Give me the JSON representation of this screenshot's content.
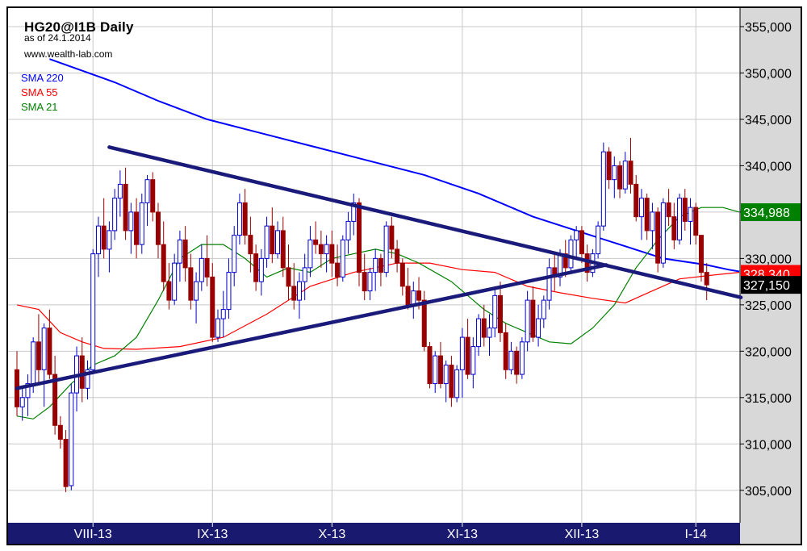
{
  "header": {
    "title": "HG20@I1B Daily",
    "as_of": "as of 24.1.2014",
    "source": "www.wealth-lab.com"
  },
  "legend": [
    {
      "label": "SMA 220",
      "color": "#0000ff"
    },
    {
      "label": "SMA 55",
      "color": "#ff0000"
    },
    {
      "label": "SMA 21",
      "color": "#008000"
    }
  ],
  "colors": {
    "up_candle": "#0000cc",
    "down_candle": "#990000",
    "trendline": "#1a1a7a",
    "axis_bar": "#191970",
    "right_axis_bg": "#d8d8d8",
    "grid": "#c8c8c8"
  },
  "chart_data": {
    "type": "candlestick",
    "title": "HG20@I1B Daily",
    "ylim": [
      301500,
      357000
    ],
    "y_ticks": [
      305000,
      310000,
      315000,
      320000,
      325000,
      330000,
      335000,
      340000,
      345000,
      350000,
      355000
    ],
    "y_tick_labels": [
      "305,000",
      "310,000",
      "315,000",
      "320,000",
      "325,000",
      "330,000",
      "335,000",
      "340,000",
      "345,000",
      "350,000",
      "355,000"
    ],
    "x_labels": [
      {
        "label": "VIII-13",
        "bar": 14
      },
      {
        "label": "IX-13",
        "bar": 36
      },
      {
        "label": "X-13",
        "bar": 58
      },
      {
        "label": "XI-13",
        "bar": 82
      },
      {
        "label": "XII-13",
        "bar": 104
      },
      {
        "label": "I-14",
        "bar": 125
      }
    ],
    "last_value_tags": [
      {
        "label": "334,988",
        "value": 334988,
        "bg": "#008000",
        "fg": "#ffffff"
      },
      {
        "label": "328,340",
        "value": 328340,
        "bg": "#ff0000",
        "fg": "#ffffff"
      },
      {
        "label": "327,150",
        "value": 327150,
        "bg": "#000000",
        "fg": "#ffffff"
      }
    ],
    "candles": [
      [
        318000,
        320000,
        313000,
        314000
      ],
      [
        314000,
        316000,
        312500,
        315000
      ],
      [
        315000,
        317500,
        313000,
        316500
      ],
      [
        316500,
        321500,
        315500,
        321000
      ],
      [
        321000,
        324000,
        316500,
        318000
      ],
      [
        318000,
        323000,
        314000,
        322500
      ],
      [
        322500,
        324500,
        317000,
        317500
      ],
      [
        317500,
        319500,
        311000,
        312000
      ],
      [
        312000,
        313000,
        309500,
        310500
      ],
      [
        310500,
        311500,
        304800,
        305400
      ],
      [
        305500,
        316500,
        305000,
        315500
      ],
      [
        315500,
        320500,
        313500,
        319500
      ],
      [
        319500,
        321500,
        314500,
        316000
      ],
      [
        316000,
        319000,
        314800,
        318000
      ],
      [
        318000,
        331000,
        317500,
        330500
      ],
      [
        330500,
        334500,
        328000,
        333500
      ],
      [
        333500,
        336500,
        330000,
        331000
      ],
      [
        331000,
        334000,
        328500,
        333000
      ],
      [
        333000,
        337500,
        332000,
        336500
      ],
      [
        336500,
        339500,
        334500,
        338000
      ],
      [
        338000,
        339800,
        332000,
        333000
      ],
      [
        333000,
        336000,
        330500,
        335000
      ],
      [
        335000,
        336500,
        330000,
        331500
      ],
      [
        331500,
        337000,
        330500,
        336000
      ],
      [
        336000,
        339000,
        333500,
        338500
      ],
      [
        338500,
        339300,
        334000,
        335000
      ],
      [
        335000,
        336000,
        330000,
        331500
      ],
      [
        331500,
        334000,
        326500,
        327500
      ],
      [
        327500,
        329500,
        324500,
        325500
      ],
      [
        325500,
        330500,
        325000,
        329500
      ],
      [
        329500,
        333000,
        327500,
        332000
      ],
      [
        332000,
        333500,
        327500,
        329000
      ],
      [
        329000,
        330500,
        324500,
        325500
      ],
      [
        325500,
        328500,
        323000,
        327500
      ],
      [
        327500,
        331500,
        326500,
        330000
      ],
      [
        330000,
        332500,
        327000,
        328000
      ],
      [
        328000,
        329500,
        321000,
        321500
      ],
      [
        321500,
        324500,
        321000,
        323500
      ],
      [
        323500,
        326500,
        321500,
        324500
      ],
      [
        324500,
        330000,
        323500,
        328500
      ],
      [
        328500,
        333500,
        327000,
        332500
      ],
      [
        332500,
        337000,
        331500,
        336000
      ],
      [
        336000,
        337500,
        331500,
        332500
      ],
      [
        332500,
        334500,
        328500,
        330500
      ],
      [
        330500,
        331500,
        326500,
        327500
      ],
      [
        327500,
        331000,
        326000,
        330000
      ],
      [
        330000,
        334500,
        329000,
        333500
      ],
      [
        333500,
        335500,
        329500,
        330500
      ],
      [
        330500,
        334000,
        330000,
        333000
      ],
      [
        333000,
        334500,
        328000,
        329000
      ],
      [
        329000,
        331500,
        325500,
        327000
      ],
      [
        327000,
        329500,
        324500,
        325500
      ],
      [
        325500,
        328500,
        323500,
        327500
      ],
      [
        327500,
        330500,
        325500,
        329000
      ],
      [
        329000,
        333500,
        328000,
        332000
      ],
      [
        332000,
        334000,
        330500,
        331500
      ],
      [
        331500,
        333000,
        329000,
        330500
      ],
      [
        330500,
        332500,
        328500,
        331500
      ],
      [
        331500,
        333000,
        328000,
        329500
      ],
      [
        329500,
        331500,
        327000,
        328000
      ],
      [
        328000,
        332500,
        327500,
        332000
      ],
      [
        332000,
        335000,
        330500,
        334000
      ],
      [
        334000,
        337000,
        332500,
        336000
      ],
      [
        336000,
        336500,
        327000,
        328500
      ],
      [
        328500,
        330500,
        325500,
        326500
      ],
      [
        326500,
        329000,
        325500,
        328500
      ],
      [
        328500,
        331000,
        326500,
        330000
      ],
      [
        330000,
        330500,
        327000,
        328500
      ],
      [
        328500,
        334000,
        328000,
        333500
      ],
      [
        333500,
        334500,
        330000,
        331000
      ],
      [
        331000,
        332000,
        328500,
        329500
      ],
      [
        329500,
        330000,
        326000,
        327000
      ],
      [
        327000,
        329000,
        324500,
        325000
      ],
      [
        325000,
        327500,
        323500,
        326500
      ],
      [
        326500,
        328000,
        324500,
        325500
      ],
      [
        325500,
        326500,
        320000,
        320500
      ],
      [
        320500,
        321000,
        316000,
        316500
      ],
      [
        316500,
        320000,
        315500,
        319500
      ],
      [
        319500,
        321000,
        316000,
        316500
      ],
      [
        316500,
        319000,
        314500,
        318500
      ],
      [
        318500,
        319500,
        314000,
        315000
      ],
      [
        315000,
        318500,
        314500,
        318000
      ],
      [
        318000,
        322500,
        315000,
        321500
      ],
      [
        321500,
        323500,
        317000,
        317500
      ],
      [
        317500,
        321500,
        316000,
        320500
      ],
      [
        320500,
        324000,
        319500,
        323500
      ],
      [
        323500,
        325000,
        320500,
        321500
      ],
      [
        321500,
        324000,
        319500,
        322500
      ],
      [
        322500,
        327000,
        321500,
        326000
      ],
      [
        326000,
        327500,
        321000,
        322000
      ],
      [
        322000,
        323000,
        317000,
        318000
      ],
      [
        318000,
        321000,
        317500,
        320000
      ],
      [
        320000,
        320500,
        316500,
        317500
      ],
      [
        317500,
        321500,
        317000,
        321000
      ],
      [
        321000,
        326500,
        320000,
        325500
      ],
      [
        325500,
        327000,
        321000,
        321500
      ],
      [
        321500,
        325000,
        320500,
        323500
      ],
      [
        323500,
        326000,
        322500,
        325500
      ],
      [
        325500,
        330000,
        324500,
        329000
      ],
      [
        329000,
        330500,
        326500,
        328000
      ],
      [
        328000,
        331000,
        327000,
        330500
      ],
      [
        330500,
        332000,
        328000,
        329000
      ],
      [
        329000,
        332500,
        328500,
        332000
      ],
      [
        332000,
        333500,
        330000,
        333000
      ],
      [
        333000,
        333500,
        329500,
        330500
      ],
      [
        330500,
        331500,
        327500,
        328500
      ],
      [
        328500,
        331000,
        328000,
        330500
      ],
      [
        330500,
        334000,
        330000,
        333500
      ],
      [
        333500,
        342500,
        333000,
        341500
      ],
      [
        341500,
        342000,
        337500,
        338500
      ],
      [
        338500,
        341000,
        336500,
        340000
      ],
      [
        340000,
        340500,
        336500,
        337500
      ],
      [
        337500,
        341500,
        337000,
        340500
      ],
      [
        340500,
        343000,
        337000,
        338000
      ],
      [
        338000,
        339000,
        334000,
        334500
      ],
      [
        334500,
        337500,
        332000,
        336500
      ],
      [
        336500,
        337000,
        332000,
        333000
      ],
      [
        333000,
        336000,
        331000,
        335000
      ],
      [
        335000,
        335500,
        328500,
        329500
      ],
      [
        329500,
        336500,
        329000,
        336000
      ],
      [
        336000,
        337500,
        333500,
        334500
      ],
      [
        334500,
        336000,
        331000,
        332000
      ],
      [
        332000,
        337000,
        331500,
        336500
      ],
      [
        336500,
        337500,
        333000,
        334000
      ],
      [
        334000,
        336500,
        331500,
        335500
      ],
      [
        335500,
        336000,
        331500,
        332500
      ],
      [
        332500,
        332500,
        327500,
        328500
      ],
      [
        328500,
        329500,
        325500,
        327150
      ]
    ],
    "sma220": [
      [
        6,
        351500
      ],
      [
        18,
        349000
      ],
      [
        26,
        347000
      ],
      [
        35,
        345000
      ],
      [
        45,
        343500
      ],
      [
        55,
        342000
      ],
      [
        65,
        340500
      ],
      [
        75,
        339000
      ],
      [
        85,
        337000
      ],
      [
        95,
        334500
      ],
      [
        103,
        333000
      ],
      [
        111,
        331500
      ],
      [
        119,
        330000
      ],
      [
        127,
        329300
      ],
      [
        131,
        328800
      ],
      [
        133,
        328600
      ]
    ],
    "sma55": [
      [
        0,
        325000
      ],
      [
        4,
        324500
      ],
      [
        8,
        322000
      ],
      [
        12,
        321000
      ],
      [
        16,
        320300
      ],
      [
        22,
        320200
      ],
      [
        30,
        320500
      ],
      [
        38,
        321500
      ],
      [
        46,
        324000
      ],
      [
        54,
        327000
      ],
      [
        62,
        328500
      ],
      [
        70,
        329500
      ],
      [
        76,
        329500
      ],
      [
        82,
        328800
      ],
      [
        88,
        328500
      ],
      [
        94,
        327000
      ],
      [
        100,
        326300
      ],
      [
        106,
        325700
      ],
      [
        112,
        325200
      ],
      [
        117,
        326500
      ],
      [
        122,
        327800
      ],
      [
        128,
        328200
      ],
      [
        133,
        328500
      ]
    ],
    "sma21": [
      [
        0,
        313000
      ],
      [
        3,
        312700
      ],
      [
        6,
        314000
      ],
      [
        10,
        316500
      ],
      [
        14,
        318500
      ],
      [
        18,
        319500
      ],
      [
        22,
        321500
      ],
      [
        26,
        325500
      ],
      [
        30,
        330000
      ],
      [
        34,
        331500
      ],
      [
        38,
        331500
      ],
      [
        42,
        330000
      ],
      [
        46,
        328000
      ],
      [
        50,
        329000
      ],
      [
        54,
        328500
      ],
      [
        58,
        330000
      ],
      [
        62,
        330500
      ],
      [
        66,
        331000
      ],
      [
        70,
        330500
      ],
      [
        74,
        329500
      ],
      [
        80,
        327500
      ],
      [
        86,
        324500
      ],
      [
        90,
        323000
      ],
      [
        94,
        322000
      ],
      [
        98,
        321000
      ],
      [
        102,
        320800
      ],
      [
        106,
        322500
      ],
      [
        110,
        325000
      ],
      [
        114,
        329000
      ],
      [
        118,
        332000
      ],
      [
        122,
        334500
      ],
      [
        126,
        335500
      ],
      [
        130,
        335500
      ],
      [
        133,
        335000
      ]
    ],
    "trendlines": [
      {
        "from": [
          17.0,
          342000
        ],
        "to": [
          133.3,
          325800
        ]
      },
      {
        "from": [
          0,
          316000
        ],
        "to": [
          108.5,
          329300
        ]
      }
    ]
  }
}
